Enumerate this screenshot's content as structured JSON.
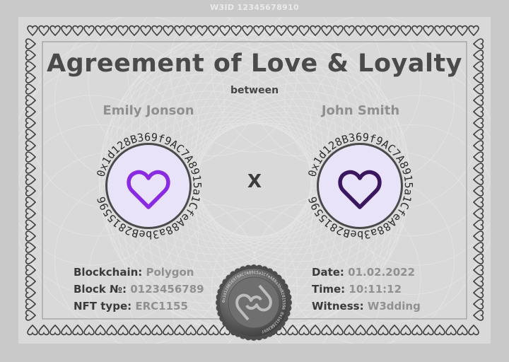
{
  "header": {
    "id_label": "W3ID 12345678910"
  },
  "certificate": {
    "title": "Agreement of Love & Loyalty",
    "between": "between",
    "separator": "X",
    "party_left": {
      "name": "Emily Jonson",
      "address": "0x1d128B369f9AC7A8915a1CfeA88a3beB2815596",
      "heart_color": "#8a2be2"
    },
    "party_right": {
      "name": "John Smith",
      "address": "0x1d128B369f9AC7A8915a1CfeA88a3beB2815596",
      "heart_color": "#3b1760"
    },
    "details_left": [
      {
        "label": "Blockchain:",
        "value": "Polygon"
      },
      {
        "label": "Block №:",
        "value": "0123456789"
      },
      {
        "label": "NFT type:",
        "value": "ERC1155"
      }
    ],
    "details_right": [
      {
        "label": "Date:",
        "value": "01.02.2022"
      },
      {
        "label": "Time:",
        "value": "10:11:12"
      },
      {
        "label": "Witness:",
        "value": "W3dding"
      }
    ],
    "seal": {
      "icon": "double-heart-infinity-icon",
      "ring_text": "0x1d128B369f9AC7A8915a1CfeA88a3beB2815596"
    }
  }
}
